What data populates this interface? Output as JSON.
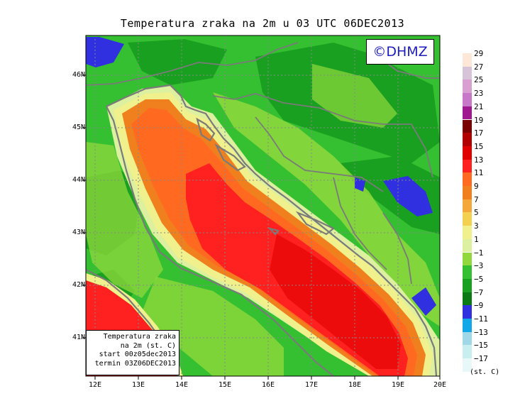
{
  "title": "Temperatura zraka na 2m u 03 UTC 06DEC2013",
  "logo": "©DHMZ",
  "info_box": {
    "line1": "Temperatura zraka",
    "line2": "na 2m (st. C)",
    "line3": "start 00z05dec2013",
    "line4": "termin 03Z06DEC2013"
  },
  "lat_labels": [
    "46N",
    "45N",
    "44N",
    "43N",
    "42N",
    "41N"
  ],
  "lon_labels": [
    "12E",
    "13E",
    "14E",
    "15E",
    "16E",
    "17E",
    "18E",
    "19E",
    "20E"
  ],
  "legend": {
    "labels": [
      "29",
      "27",
      "25",
      "23",
      "21",
      "19",
      "17",
      "15",
      "13",
      "11",
      "9",
      "7",
      "5",
      "3",
      "1",
      "−1",
      "−3",
      "−5",
      "−7",
      "−9",
      "−11",
      "−13",
      "−15",
      "−17"
    ],
    "colors": [
      "#fde8d8",
      "#d8c4d8",
      "#d8a0d0",
      "#c878c8",
      "#a01890",
      "#7a0000",
      "#b00000",
      "#e00000",
      "#ff2020",
      "#ff6a20",
      "#f0801e",
      "#f4a83c",
      "#f4d050",
      "#f0f08c",
      "#dcf0a0",
      "#90d83c",
      "#34c030",
      "#1aa020",
      "#0a7a14",
      "#3030e0",
      "#12a8e8",
      "#a0d8e8",
      "#c8eef0",
      "#e8f8f8"
    ],
    "units": "(st. C)"
  },
  "map": {
    "region": "Adriatic Sea and surroundings",
    "lon_range": [
      11.8,
      20.0
    ],
    "lat_range": [
      40.3,
      46.8
    ],
    "colors": {
      "land_dark": "#1aa020",
      "land": "#34c030",
      "land_light": "#90d83c",
      "coast_pale": "#dcf0a0",
      "coast_yellow": "#f0f08c",
      "sea_orange": "#f0801e",
      "sea_orange2": "#ff6a20",
      "sea_red": "#ff2020",
      "sea_red2": "#e00000",
      "cold_blue": "#3030e0",
      "border": "#7a7a7a"
    }
  }
}
